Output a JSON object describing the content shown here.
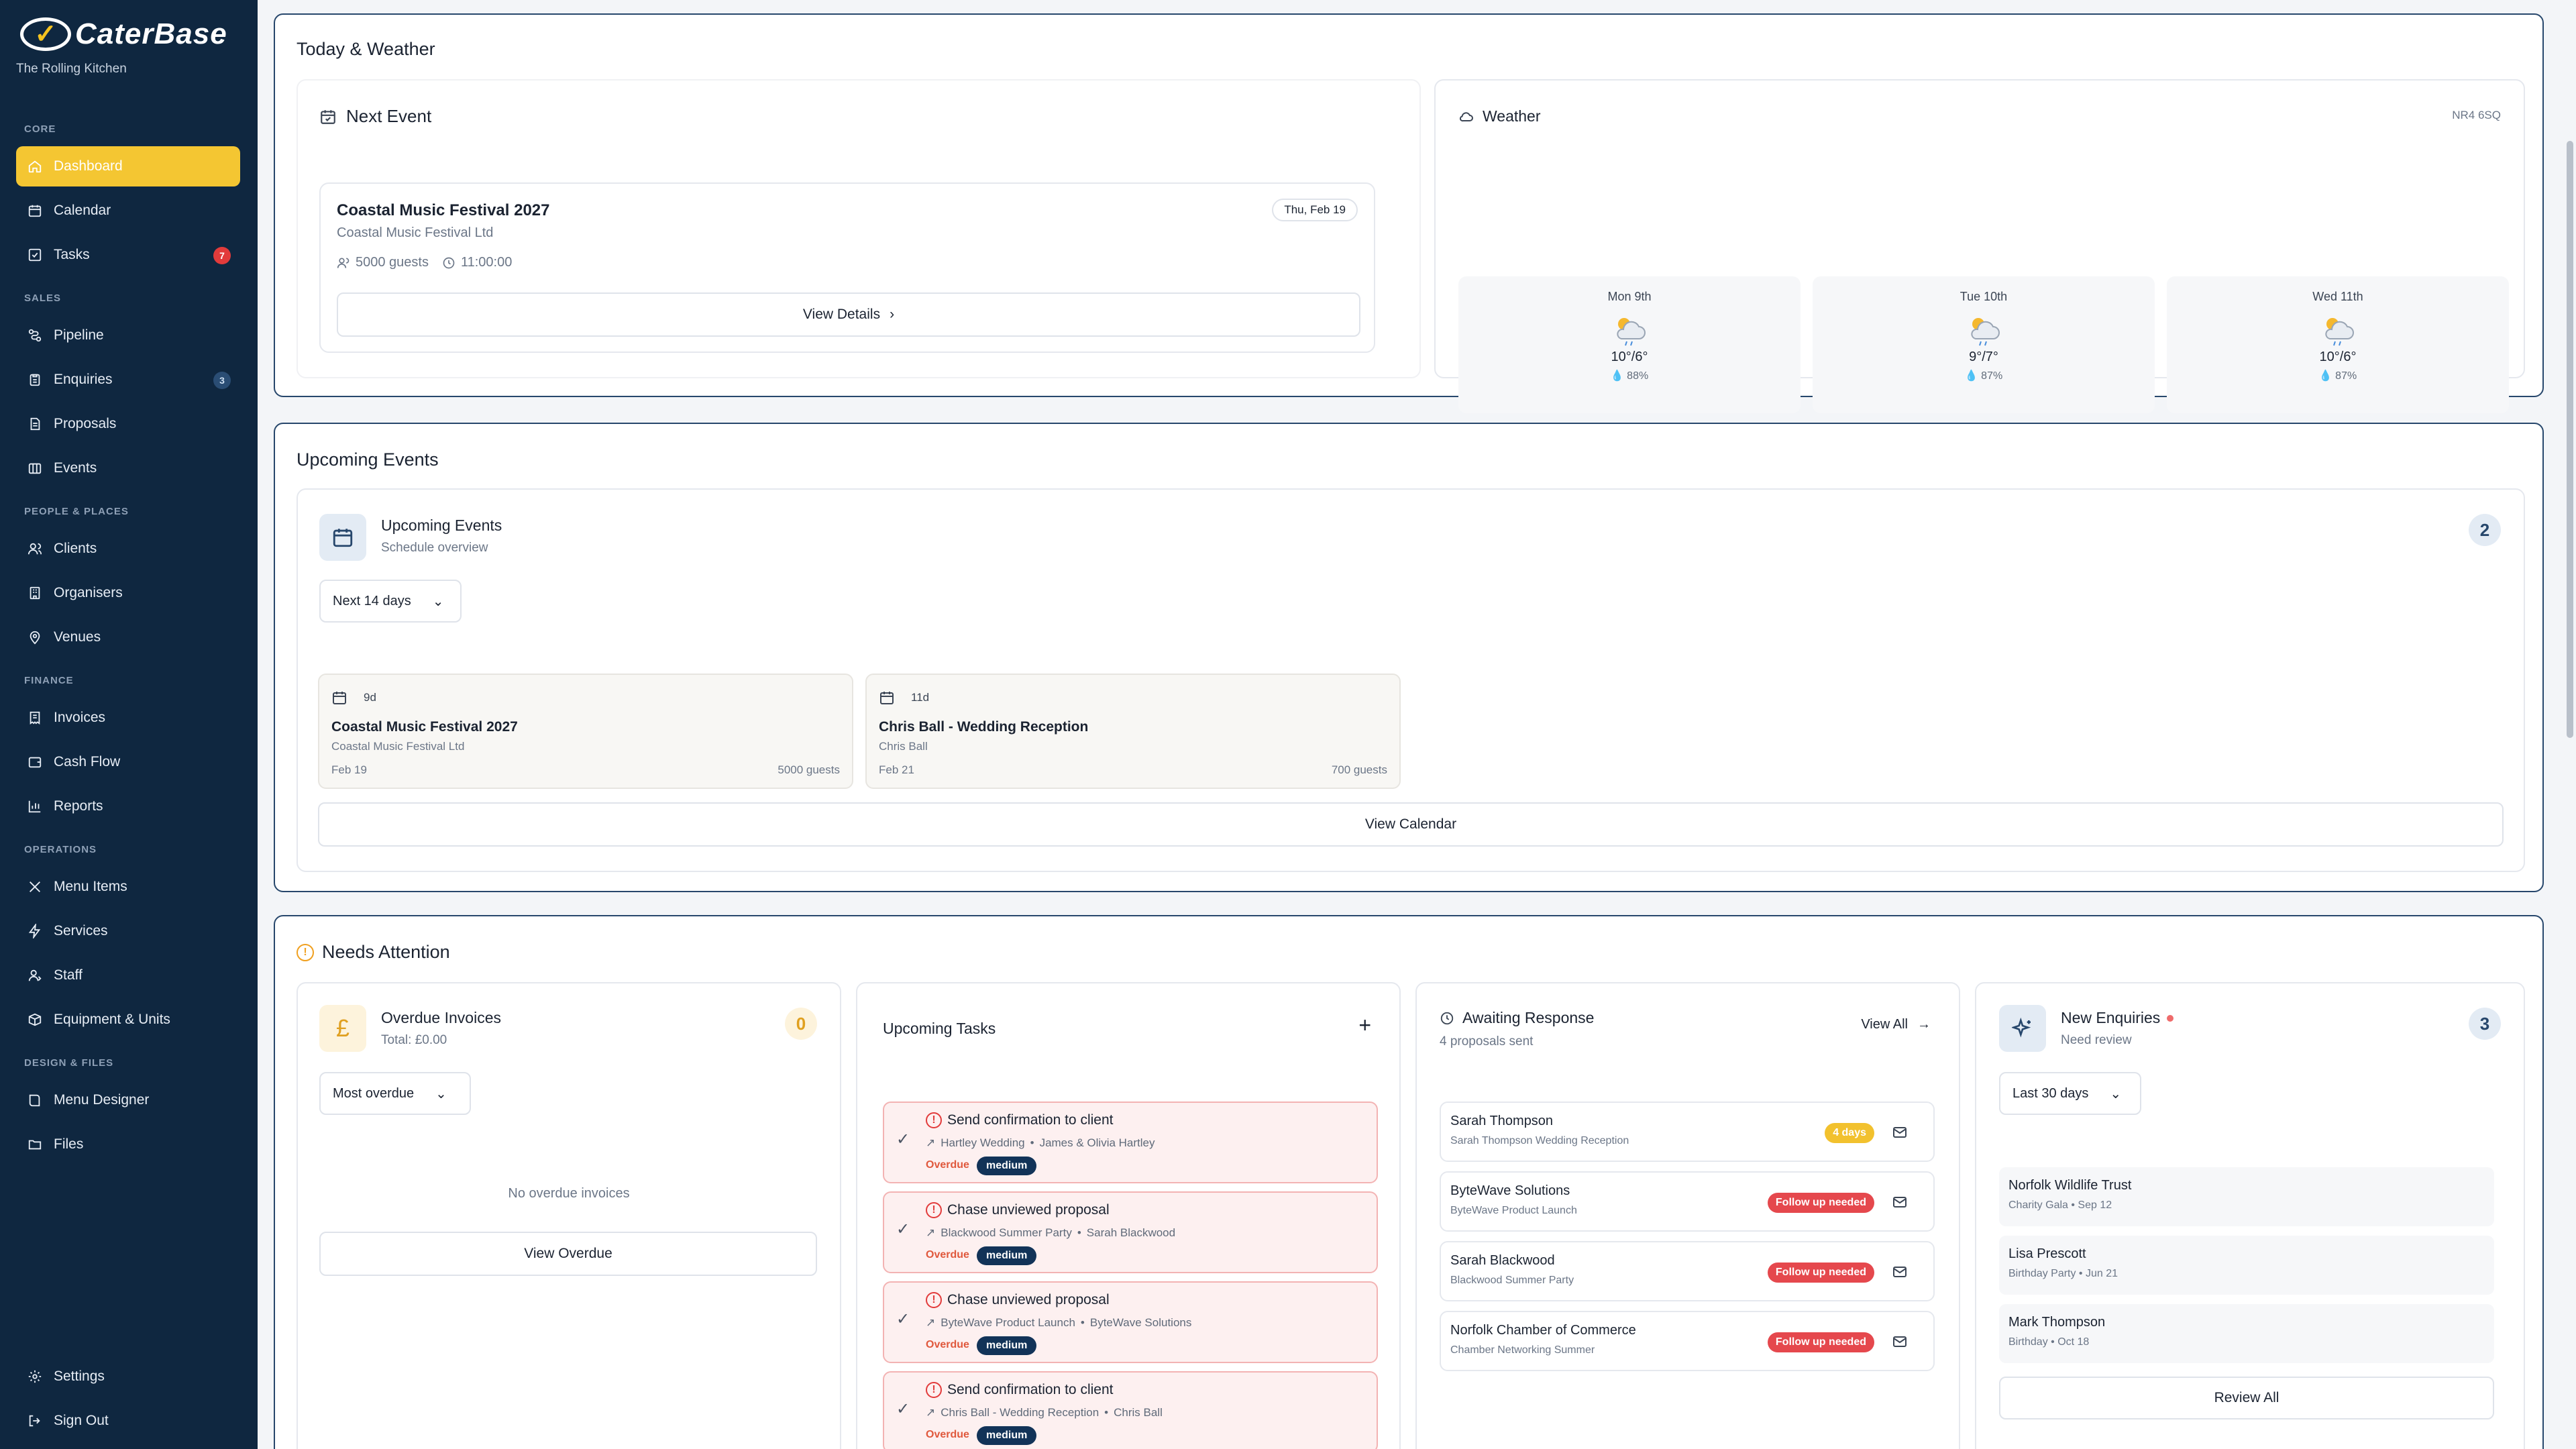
{
  "sidebar": {
    "brand": "CaterBase",
    "subtitle": "The Rolling Kitchen",
    "groups": [
      {
        "label": "CORE"
      },
      {
        "label": "SALES"
      },
      {
        "label": "PEOPLE & PLACES"
      },
      {
        "label": "FINANCE"
      },
      {
        "label": "OPERATIONS"
      },
      {
        "label": "DESIGN & FILES"
      }
    ],
    "items": {
      "dashboard": "Dashboard",
      "calendar": "Calendar",
      "tasks": "Tasks",
      "tasks_badge": "7",
      "pipeline": "Pipeline",
      "enquiries": "Enquiries",
      "enquiries_badge": "3",
      "proposals": "Proposals",
      "events": "Events",
      "clients": "Clients",
      "organisers": "Organisers",
      "venues": "Venues",
      "invoices": "Invoices",
      "cash_flow": "Cash Flow",
      "reports": "Reports",
      "menu_items": "Menu Items",
      "services": "Services",
      "staff": "Staff",
      "equipment": "Equipment & Units",
      "menu_designer": "Menu Designer",
      "files": "Files",
      "settings": "Settings",
      "sign_out": "Sign Out"
    },
    "accent_color": "#f4c632",
    "background_color": "#0f2740"
  },
  "today": {
    "section_title": "Today & Weather",
    "next_event": {
      "heading": "Next Event",
      "name": "Coastal Music Festival 2027",
      "org": "Coastal Music Festival Ltd",
      "date_badge": "Thu, Feb 19",
      "guests": "5000 guests",
      "time": "11:00:00",
      "button": "View Details"
    },
    "weather": {
      "heading": "Weather",
      "postcode": "NR4 6SQ",
      "days": [
        {
          "day": "Mon 9th",
          "temp": "10°/6°",
          "humidity": "88%"
        },
        {
          "day": "Tue 10th",
          "temp": "9°/7°",
          "humidity": "87%"
        },
        {
          "day": "Wed 11th",
          "temp": "10°/6°",
          "humidity": "87%"
        }
      ]
    }
  },
  "upcoming": {
    "section_title": "Upcoming Events",
    "heading": "Upcoming Events",
    "subheading": "Schedule overview",
    "count": "2",
    "range": "Next 14 days",
    "events": [
      {
        "days": "9d",
        "name": "Coastal Music Festival 2027",
        "org": "Coastal Music Festival Ltd",
        "date": "Feb 19",
        "guests": "5000 guests"
      },
      {
        "days": "11d",
        "name": "Chris Ball - Wedding Reception",
        "org": "Chris Ball",
        "date": "Feb 21",
        "guests": "700 guests"
      }
    ],
    "button": "View Calendar"
  },
  "attention": {
    "section_title": "Needs Attention",
    "overdue": {
      "heading": "Overdue Invoices",
      "total": "Total: £0.00",
      "count": "0",
      "sort": "Most overdue",
      "empty": "No overdue invoices",
      "button": "View Overdue"
    },
    "tasks": {
      "heading": "Upcoming Tasks",
      "add": "+",
      "items": [
        {
          "title": "Send confirmation to client",
          "event": "Hartley Wedding",
          "person": "James & Olivia Hartley",
          "status": "Overdue",
          "priority": "medium"
        },
        {
          "title": "Chase unviewed proposal",
          "event": "Blackwood Summer Party",
          "person": "Sarah Blackwood",
          "status": "Overdue",
          "priority": "medium"
        },
        {
          "title": "Chase unviewed proposal",
          "event": "ByteWave Product Launch",
          "person": "ByteWave Solutions",
          "status": "Overdue",
          "priority": "medium"
        },
        {
          "title": "Send confirmation to client",
          "event": "Chris Ball - Wedding Reception",
          "person": "Chris Ball",
          "status": "Overdue",
          "priority": "medium"
        }
      ]
    },
    "awaiting": {
      "heading": "Awaiting Response",
      "sub": "4 proposals sent",
      "view_all": "View All",
      "items": [
        {
          "name": "Sarah Thompson",
          "sub": "Sarah Thompson Wedding Reception",
          "tag": "4 days",
          "tag_color": "#f2c12e"
        },
        {
          "name": "ByteWave Solutions",
          "sub": "ByteWave Product Launch",
          "tag": "Follow up needed",
          "tag_color": "#e5484d"
        },
        {
          "name": "Sarah Blackwood",
          "sub": "Blackwood Summer Party",
          "tag": "Follow up needed",
          "tag_color": "#e5484d"
        },
        {
          "name": "Norfolk Chamber of Commerce",
          "sub": "Chamber Networking Summer",
          "tag": "Follow up needed",
          "tag_color": "#e5484d"
        }
      ]
    },
    "enquiries": {
      "heading": "New Enquiries",
      "sub": "Need review",
      "count": "3",
      "range": "Last 30 days",
      "items": [
        {
          "name": "Norfolk Wildlife Trust",
          "sub": "Charity Gala • Sep 12"
        },
        {
          "name": "Lisa Prescott",
          "sub": "Birthday Party • Jun 21"
        },
        {
          "name": "Mark Thompson",
          "sub": "Birthday • Oct 18"
        }
      ],
      "button": "Review All"
    }
  }
}
